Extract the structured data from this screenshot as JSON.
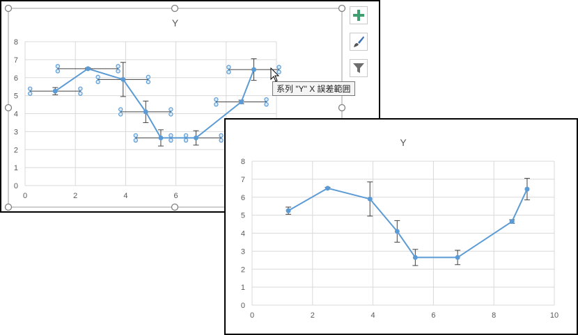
{
  "colors": {
    "series": "#5b9bd5",
    "selection_handle": "#5b9bd5",
    "grid": "#d9d9d9",
    "axis_text": "#595959",
    "errorbar": "#404040",
    "plus_button": "#3f9f6e"
  },
  "side_buttons": [
    {
      "name": "chart-elements-button",
      "icon": "plus-icon"
    },
    {
      "name": "chart-styles-button",
      "icon": "paintbrush-icon"
    },
    {
      "name": "chart-filters-button",
      "icon": "funnel-icon"
    }
  ],
  "tooltip_text": "系列 \"Y\" X 誤差範囲",
  "chart_data": [
    {
      "type": "scatter",
      "title": "Y",
      "xlabel": "",
      "ylabel": "",
      "xlim": [
        0,
        10
      ],
      "ylim": [
        0,
        8
      ],
      "x_ticks": [
        "0",
        "2",
        "4",
        "6",
        "8",
        "10"
      ],
      "y_ticks": [
        "0",
        "1",
        "2",
        "3",
        "4",
        "5",
        "6",
        "7",
        "8"
      ],
      "grid": true,
      "lines": true,
      "x": [
        1.2,
        2.5,
        3.9,
        4.8,
        5.4,
        6.8,
        8.6,
        9.1
      ],
      "y": [
        5.25,
        6.5,
        5.9,
        4.1,
        2.65,
        2.65,
        4.65,
        6.45
      ],
      "y_err": [
        0.2,
        0.05,
        0.95,
        0.6,
        0.45,
        0.4,
        0.1,
        0.6
      ],
      "x_err": [
        1.0,
        1.2,
        1.0,
        1.0,
        1.0,
        1.0,
        1.0,
        1.0
      ],
      "x_err_selected": true
    },
    {
      "type": "scatter",
      "title": "Y",
      "xlabel": "",
      "ylabel": "",
      "xlim": [
        0,
        10
      ],
      "ylim": [
        0,
        8
      ],
      "x_ticks": [
        "0",
        "2",
        "4",
        "6",
        "8",
        "10"
      ],
      "y_ticks": [
        "0",
        "1",
        "2",
        "3",
        "4",
        "5",
        "6",
        "7",
        "8"
      ],
      "grid": true,
      "lines": true,
      "x": [
        1.2,
        2.5,
        3.9,
        4.8,
        5.4,
        6.8,
        8.6,
        9.1
      ],
      "y": [
        5.25,
        6.5,
        5.9,
        4.1,
        2.65,
        2.65,
        4.65,
        6.45
      ],
      "y_err": [
        0.2,
        0.05,
        0.95,
        0.6,
        0.45,
        0.4,
        0.1,
        0.6
      ]
    }
  ]
}
